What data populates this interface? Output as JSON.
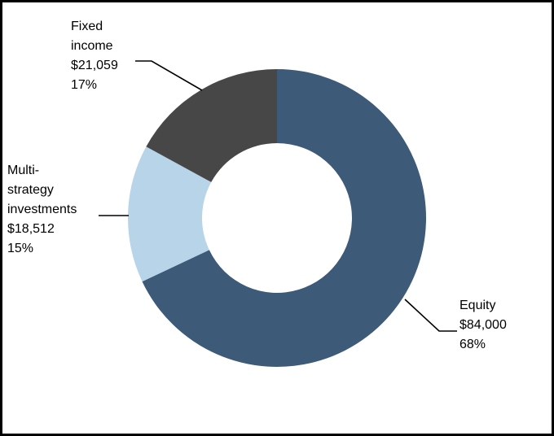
{
  "chart_data": {
    "type": "pie",
    "variant": "donut",
    "title": "",
    "unit": "$",
    "slices": [
      {
        "name": "Equity",
        "value": 84000,
        "value_label": "$84,000",
        "percent_label": "68%",
        "name_lines": [
          "Equity"
        ],
        "color": "#3d5a78"
      },
      {
        "name": "Multi-strategy investments",
        "value": 18512,
        "value_label": "$18,512",
        "percent_label": "15%",
        "name_lines": [
          "Multi-",
          "strategy",
          "investments"
        ],
        "color": "#b8d4e9"
      },
      {
        "name": "Fixed income",
        "value": 21059,
        "value_label": "$21,059",
        "percent_label": "17%",
        "name_lines": [
          "Fixed",
          "income"
        ],
        "color": "#474747"
      }
    ]
  }
}
